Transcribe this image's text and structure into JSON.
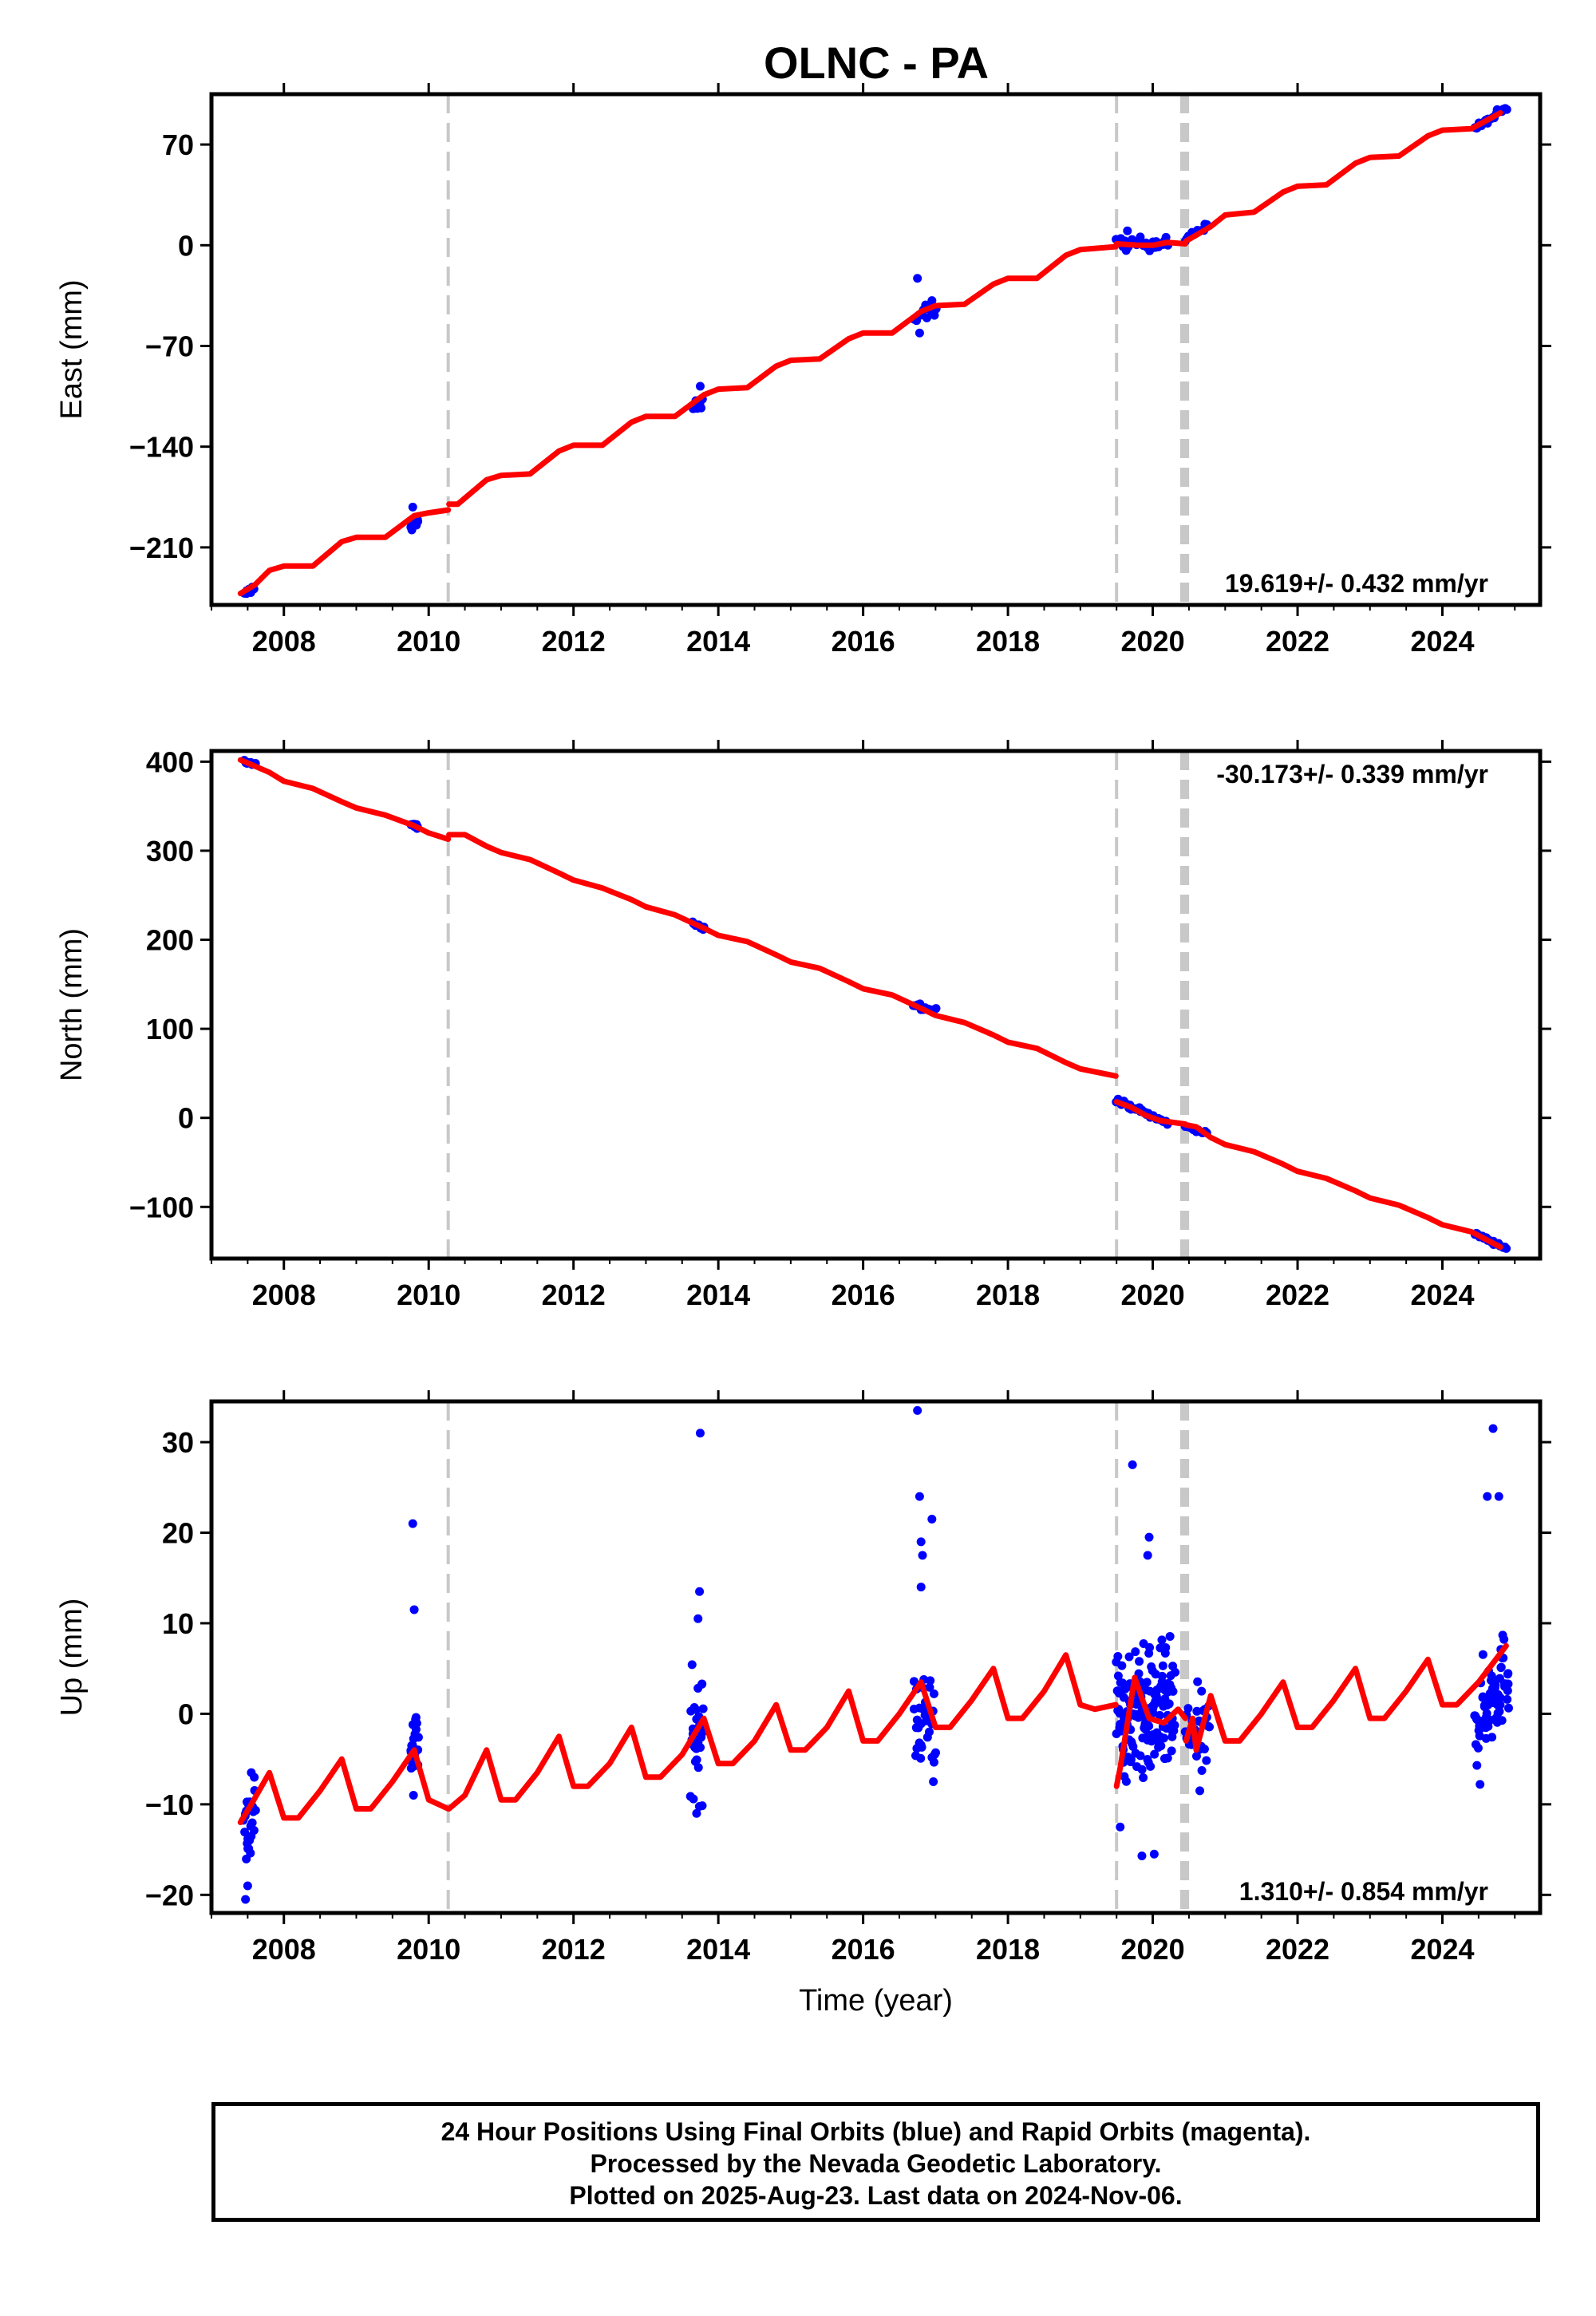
{
  "title": "OLNC - PA",
  "chart_data": [
    {
      "type": "scatter",
      "name": "east",
      "ylabel": "East (mm)",
      "xlabel": "",
      "xlim": [
        2007.0,
        2025.35
      ],
      "ylim": [
        -250,
        105
      ],
      "yticks": [
        -210,
        -140,
        -70,
        0,
        70
      ],
      "ytick_labels": [
        "−210",
        "−140",
        "−70",
        "0",
        "70"
      ],
      "xticks": [
        2008,
        2010,
        2012,
        2014,
        2016,
        2018,
        2020,
        2022,
        2024
      ],
      "xtick_labels": [
        "2008",
        "2010",
        "2012",
        "2014",
        "2016",
        "2018",
        "2020",
        "2022",
        "2024"
      ],
      "rate_label": "19.619+/- 0.432 mm/yr",
      "rate_position": "bottom-right",
      "model": {
        "color": "#ff0000",
        "segments": [
          {
            "x": [
              2007.4,
              2007.6,
              2007.8,
              2008.0,
              2008.4,
              2008.8,
              2009.0,
              2009.4,
              2009.8,
              2010.0,
              2010.27
            ],
            "y": [
              -242,
              -236,
              -226,
              -223,
              -223,
              -206,
              -203,
              -203,
              -188,
              -186,
              -184
            ]
          },
          {
            "x": [
              2010.28,
              2010.4,
              2010.8,
              2011.0,
              2011.4,
              2011.8,
              2012.0,
              2012.4,
              2012.8,
              2013.0,
              2013.4,
              2013.8,
              2014.0,
              2014.4,
              2014.8,
              2015.0,
              2015.4,
              2015.8,
              2016.0,
              2016.4,
              2016.8,
              2017.0,
              2017.4,
              2017.8,
              2018.0,
              2018.4,
              2018.8,
              2019.0,
              2019.49
            ],
            "y": [
              -180,
              -180,
              -163,
              -160,
              -159,
              -143,
              -139,
              -139,
              -123,
              -119,
              -119,
              -104,
              -100,
              -99,
              -84,
              -80,
              -79,
              -65,
              -61,
              -61,
              -46,
              -42,
              -41,
              -27,
              -23,
              -23,
              -7,
              -3,
              -1
            ]
          },
          {
            "x": [
              2019.5,
              2019.8,
              2020.0,
              2020.2,
              2020.45
            ],
            "y": [
              1,
              0,
              0,
              2,
              1
            ]
          },
          {
            "x": [
              2020.46,
              2020.6,
              2020.8,
              2021.0,
              2021.4,
              2021.8,
              2022.0,
              2022.4,
              2022.8,
              2023.0,
              2023.4,
              2023.8,
              2024.0,
              2024.4,
              2024.8
            ],
            "y": [
              3,
              7,
              13,
              21,
              23,
              37,
              41,
              42,
              57,
              61,
              62,
              76,
              80,
              81,
              92
            ]
          }
        ]
      },
      "clusters": [
        {
          "x0": 2007.45,
          "x1": 2007.58,
          "y_start": -243,
          "y_end": -238,
          "n": 10,
          "spread": 1.5,
          "outliers": []
        },
        {
          "x0": 2009.75,
          "x1": 2009.85,
          "y_start": -195,
          "y_end": -193,
          "n": 10,
          "spread": 3,
          "outliers": [
            [
              2009.78,
              -182
            ]
          ]
        },
        {
          "x0": 2013.65,
          "x1": 2013.78,
          "y_start": -113,
          "y_end": -110,
          "n": 10,
          "spread": 2.5,
          "outliers": [
            [
              2013.75,
              -98
            ]
          ]
        },
        {
          "x0": 2016.7,
          "x1": 2017.0,
          "y_start": -48,
          "y_end": -43,
          "n": 14,
          "spread": 5,
          "outliers": [
            [
              2016.75,
              -23
            ],
            [
              2016.78,
              -61
            ]
          ]
        },
        {
          "x0": 2019.5,
          "x1": 2020.2,
          "y_start": 1,
          "y_end": 1,
          "n": 45,
          "spread": 3,
          "outliers": [
            [
              2019.65,
              10
            ]
          ]
        },
        {
          "x0": 2020.45,
          "x1": 2020.75,
          "y_start": 4,
          "y_end": 14,
          "n": 14,
          "spread": 1.5,
          "outliers": []
        },
        {
          "x0": 2024.45,
          "x1": 2024.88,
          "y_start": 81,
          "y_end": 95,
          "n": 22,
          "spread": 2,
          "outliers": []
        }
      ]
    },
    {
      "type": "scatter",
      "name": "north",
      "ylabel": "North (mm)",
      "xlabel": "",
      "xlim": [
        2007.0,
        2025.35
      ],
      "ylim": [
        -158,
        412
      ],
      "yticks": [
        -100,
        0,
        100,
        200,
        300,
        400
      ],
      "ytick_labels": [
        "−100",
        "0",
        "100",
        "200",
        "300",
        "400"
      ],
      "xticks": [
        2008,
        2010,
        2012,
        2014,
        2016,
        2018,
        2020,
        2022,
        2024
      ],
      "xtick_labels": [
        "2008",
        "2010",
        "2012",
        "2014",
        "2016",
        "2018",
        "2020",
        "2022",
        "2024"
      ],
      "rate_label": "-30.173+/- 0.339 mm/yr",
      "rate_position": "top-right",
      "model": {
        "color": "#ff0000",
        "segments": [
          {
            "x": [
              2007.4,
              2007.8,
              2008.0,
              2008.4,
              2008.8,
              2009.0,
              2009.4,
              2009.8,
              2010.0,
              2010.27
            ],
            "y": [
              402,
              388,
              378,
              370,
              355,
              348,
              340,
              328,
              320,
              313
            ]
          },
          {
            "x": [
              2010.28,
              2010.5,
              2010.8,
              2011.0,
              2011.4,
              2011.8,
              2012.0,
              2012.4,
              2012.8,
              2013.0,
              2013.4,
              2013.8,
              2014.0,
              2014.4,
              2014.8,
              2015.0,
              2015.4,
              2015.8,
              2016.0,
              2016.4,
              2016.8,
              2017.0,
              2017.4,
              2017.8,
              2018.0,
              2018.4,
              2018.8,
              2019.0,
              2019.49
            ],
            "y": [
              318,
              318,
              305,
              298,
              290,
              275,
              267,
              258,
              245,
              237,
              228,
              213,
              205,
              198,
              183,
              175,
              168,
              153,
              145,
              138,
              123,
              115,
              107,
              93,
              85,
              78,
              62,
              55,
              47
            ]
          },
          {
            "x": [
              2019.5,
              2019.7,
              2019.9,
              2020.1,
              2020.45
            ],
            "y": [
              18,
              12,
              3,
              -3,
              -7
            ]
          },
          {
            "x": [
              2020.46,
              2020.6,
              2020.8,
              2021.0,
              2021.4,
              2021.8,
              2022.0,
              2022.4,
              2022.8,
              2023.0,
              2023.4,
              2023.8,
              2024.0,
              2024.4,
              2024.8
            ],
            "y": [
              -8,
              -10,
              -22,
              -30,
              -38,
              -52,
              -60,
              -68,
              -82,
              -90,
              -98,
              -112,
              -120,
              -128,
              -145
            ]
          }
        ]
      },
      "clusters": [
        {
          "x0": 2007.45,
          "x1": 2007.6,
          "y_start": 400,
          "y_end": 397,
          "n": 8,
          "spread": 1.5,
          "outliers": []
        },
        {
          "x0": 2009.75,
          "x1": 2009.85,
          "y_start": 330,
          "y_end": 326,
          "n": 8,
          "spread": 2,
          "outliers": []
        },
        {
          "x0": 2013.65,
          "x1": 2013.8,
          "y_start": 220,
          "y_end": 213,
          "n": 10,
          "spread": 2,
          "outliers": []
        },
        {
          "x0": 2016.7,
          "x1": 2017.0,
          "y_start": 127,
          "y_end": 122,
          "n": 12,
          "spread": 2.5,
          "outliers": []
        },
        {
          "x0": 2019.5,
          "x1": 2020.2,
          "y_start": 20,
          "y_end": -6,
          "n": 40,
          "spread": 2,
          "outliers": []
        },
        {
          "x0": 2020.45,
          "x1": 2020.75,
          "y_start": -9,
          "y_end": -18,
          "n": 14,
          "spread": 1.5,
          "outliers": []
        },
        {
          "x0": 2024.45,
          "x1": 2024.88,
          "y_start": -130,
          "y_end": -146,
          "n": 22,
          "spread": 1.5,
          "outliers": []
        }
      ]
    },
    {
      "type": "scatter",
      "name": "up",
      "ylabel": "Up (mm)",
      "xlabel": "Time (year)",
      "xlim": [
        2007.0,
        2025.35
      ],
      "ylim": [
        -22,
        34.5
      ],
      "yticks": [
        -20,
        -10,
        0,
        10,
        20,
        30
      ],
      "ytick_labels": [
        "−20",
        "−10",
        "0",
        "10",
        "20",
        "30"
      ],
      "xticks": [
        2008,
        2010,
        2012,
        2014,
        2016,
        2018,
        2020,
        2022,
        2024
      ],
      "xtick_labels": [
        "2008",
        "2010",
        "2012",
        "2014",
        "2016",
        "2018",
        "2020",
        "2022",
        "2024"
      ],
      "rate_label": "1.310+/- 0.854 mm/yr",
      "rate_position": "bottom-right",
      "model": {
        "color": "#ff0000",
        "segments": [
          {
            "x": [
              2007.4,
              2007.55,
              2007.8,
              2008.0,
              2008.2,
              2008.5,
              2008.8,
              2009.0,
              2009.2,
              2009.5,
              2009.8,
              2010.0,
              2010.27
            ],
            "y": [
              -12,
              -10,
              -6.5,
              -11.5,
              -11.5,
              -8.5,
              -5,
              -10.5,
              -10.5,
              -7.5,
              -4,
              -9.5,
              -10.5
            ]
          },
          {
            "x": [
              2010.28,
              2010.5,
              2010.8,
              2011.0,
              2011.2,
              2011.5,
              2011.8,
              2012.0,
              2012.2,
              2012.5,
              2012.8,
              2013.0,
              2013.2,
              2013.5,
              2013.8,
              2014.0,
              2014.2,
              2014.5,
              2014.8,
              2015.0,
              2015.2,
              2015.5,
              2015.8,
              2016.0,
              2016.2,
              2016.5,
              2016.8,
              2017.0,
              2017.2,
              2017.5,
              2017.8,
              2018.0,
              2018.2,
              2018.5,
              2018.8,
              2019.0,
              2019.2,
              2019.49
            ],
            "y": [
              -10.5,
              -9,
              -4,
              -9.5,
              -9.5,
              -6.5,
              -2.5,
              -8,
              -8,
              -5.5,
              -1.5,
              -7,
              -7,
              -4.5,
              -0.5,
              -5.5,
              -5.5,
              -3,
              1,
              -4,
              -4,
              -1.5,
              2.5,
              -3,
              -3,
              0,
              3.5,
              -1.5,
              -1.5,
              1.5,
              5,
              -0.5,
              -0.5,
              2.5,
              6.5,
              1,
              0.5,
              1
            ]
          },
          {
            "x": [
              2019.5,
              2019.55,
              2019.75,
              2019.95,
              2020.15,
              2020.35,
              2020.45
            ],
            "y": [
              -8,
              -6,
              4,
              -0.5,
              -1,
              0.5,
              -0.5
            ]
          },
          {
            "x": [
              2020.46,
              2020.55,
              2020.6,
              2020.8,
              2021.0,
              2021.2,
              2021.5,
              2021.8,
              2022.0,
              2022.2,
              2022.5,
              2022.8,
              2023.0,
              2023.2,
              2023.5,
              2023.8,
              2024.0,
              2024.2,
              2024.5,
              2024.88
            ],
            "y": [
              -3,
              -0.5,
              -4,
              2,
              -3,
              -3,
              0,
              3.5,
              -1.5,
              -1.5,
              1.5,
              5,
              -0.5,
              -0.5,
              2.5,
              6,
              1,
              1,
              3.5,
              7.5
            ]
          }
        ]
      },
      "clusters": [
        {
          "x0": 2007.45,
          "x1": 2007.6,
          "y_start": -13,
          "y_end": -11,
          "n": 24,
          "spread": 3.5,
          "outliers": [
            [
              2007.47,
              -20.5
            ],
            [
              2007.5,
              -19
            ],
            [
              2007.55,
              -6.5
            ]
          ]
        },
        {
          "x0": 2009.75,
          "x1": 2009.85,
          "y_start": -3,
          "y_end": -4,
          "n": 22,
          "spread": 3.5,
          "outliers": [
            [
              2009.78,
              21
            ],
            [
              2009.8,
              11.5
            ],
            [
              2009.79,
              -9
            ]
          ]
        },
        {
          "x0": 2013.62,
          "x1": 2013.8,
          "y_start": -3,
          "y_end": -2,
          "n": 36,
          "spread": 4.5,
          "outliers": [
            [
              2013.75,
              31
            ],
            [
              2013.74,
              13.5
            ],
            [
              2013.72,
              10.5
            ],
            [
              2013.7,
              -11
            ]
          ]
        },
        {
          "x0": 2016.7,
          "x1": 2017.0,
          "y_start": 0,
          "y_end": 0,
          "n": 36,
          "spread": 4.5,
          "outliers": [
            [
              2016.75,
              33.5
            ],
            [
              2016.78,
              24
            ],
            [
              2016.8,
              19
            ],
            [
              2016.82,
              17.5
            ],
            [
              2016.95,
              21.5
            ],
            [
              2016.8,
              14
            ],
            [
              2016.97,
              -7.5
            ]
          ]
        },
        {
          "x0": 2019.5,
          "x1": 2020.3,
          "y_start": 0,
          "y_end": 0,
          "n": 170,
          "spread": 5,
          "outliers": [
            [
              2019.72,
              27.5
            ],
            [
              2019.95,
              19.5
            ],
            [
              2019.93,
              17.5
            ],
            [
              2019.85,
              -15.7
            ],
            [
              2020.02,
              -15.5
            ],
            [
              2019.55,
              -12.5
            ]
          ]
        },
        {
          "x0": 2020.45,
          "x1": 2020.78,
          "y_start": -2,
          "y_end": -3,
          "n": 34,
          "spread": 3.5,
          "outliers": [
            [
              2020.65,
              -8.5
            ]
          ]
        },
        {
          "x0": 2024.45,
          "x1": 2024.92,
          "y_start": -1,
          "y_end": 5,
          "n": 76,
          "spread": 3.5,
          "outliers": [
            [
              2024.7,
              31.5
            ],
            [
              2024.62,
              24
            ],
            [
              2024.78,
              24
            ],
            [
              2024.52,
              -7.8
            ]
          ]
        }
      ]
    }
  ],
  "offset_lines": [
    2010.27,
    2019.5,
    2020.4,
    2020.43,
    2020.45,
    2020.48
  ],
  "colors": {
    "data": "#0000ff",
    "model": "#ff0000",
    "offset": "#c8c8c8",
    "frame": "#000000"
  },
  "footer": {
    "line1": "24 Hour Positions Using Final Orbits (blue) and Rapid Orbits (magenta).",
    "line2": "Processed by the Nevada Geodetic Laboratory.",
    "line3": "Plotted on 2025-Aug-23. Last data on 2024-Nov-06."
  }
}
